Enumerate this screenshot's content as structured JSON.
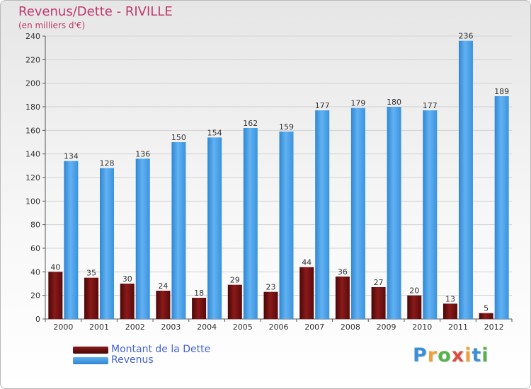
{
  "chart_data": {
    "type": "bar",
    "title": "Revenus/Dette - RIVILLE",
    "subtitle": "(en milliers d'€)",
    "categories": [
      "2000",
      "2001",
      "2002",
      "2003",
      "2004",
      "2005",
      "2006",
      "2007",
      "2008",
      "2009",
      "2010",
      "2011",
      "2012"
    ],
    "series": [
      {
        "name": "Montant de la Dette",
        "color": "#6b0d0d",
        "values": [
          40,
          35,
          30,
          24,
          18,
          29,
          23,
          44,
          36,
          27,
          20,
          13,
          5
        ]
      },
      {
        "name": "Revenus",
        "color": "#3f9be6",
        "values": [
          134,
          128,
          136,
          150,
          154,
          162,
          159,
          177,
          179,
          180,
          177,
          236,
          189
        ]
      }
    ],
    "ylim": [
      0,
      240
    ],
    "yticks": [
      0,
      20,
      40,
      60,
      80,
      100,
      120,
      140,
      160,
      180,
      200,
      220,
      240
    ],
    "grid": true,
    "legend_position": "bottom-left"
  },
  "logo": {
    "letters": [
      "P",
      "r",
      "o",
      "x",
      "i",
      "t",
      "i"
    ],
    "colors": [
      "#3c8fd6",
      "#f0a23a",
      "#55b24c",
      "#e04a3c",
      "#f0a23a",
      "#3c8fd6",
      "#55b24c"
    ]
  }
}
